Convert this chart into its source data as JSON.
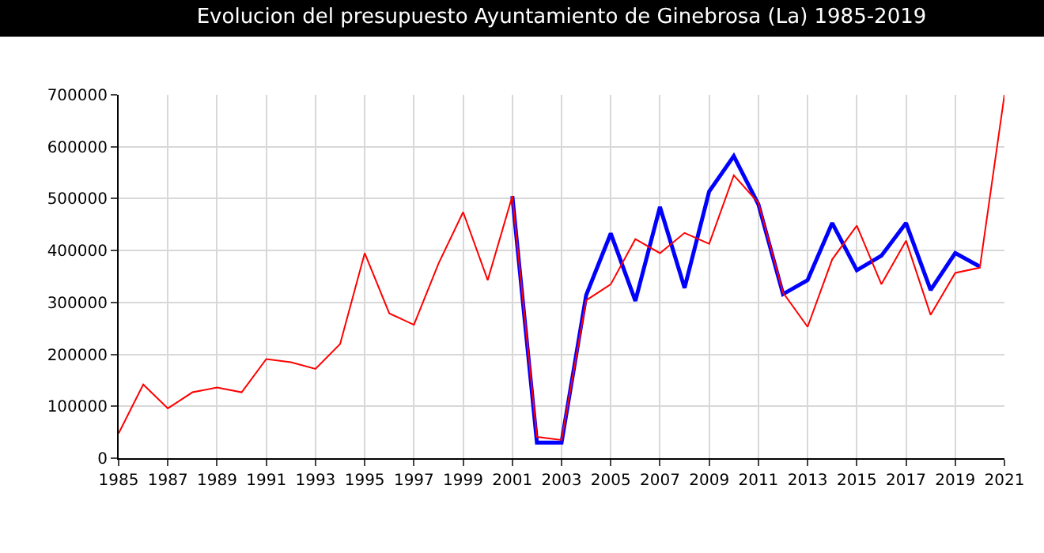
{
  "chart_data": {
    "type": "line",
    "title": "Evolucion del presupuesto Ayuntamiento de Ginebrosa (La) 1985-2019",
    "x": [
      1985,
      1986,
      1987,
      1988,
      1989,
      1990,
      1991,
      1992,
      1993,
      1994,
      1995,
      1996,
      1997,
      1998,
      1999,
      2000,
      2001,
      2002,
      2003,
      2004,
      2005,
      2006,
      2007,
      2008,
      2009,
      2010,
      2011,
      2012,
      2013,
      2014,
      2015,
      2016,
      2017,
      2018,
      2019,
      2020,
      2021
    ],
    "series": [
      {
        "color": "#0000ff",
        "x": [
          2001,
          2002,
          2003,
          2004,
          2005,
          2006,
          2007,
          2008,
          2009,
          2010,
          2011,
          2012,
          2013,
          2014,
          2015,
          2016,
          2017,
          2018,
          2019,
          2020
        ],
        "values": [
          505000,
          30000,
          30000,
          314000,
          433000,
          303000,
          484000,
          328000,
          514000,
          582000,
          489000,
          316000,
          343000,
          453000,
          362000,
          390000,
          453000,
          324000,
          395000,
          369000
        ]
      },
      {
        "color": "#ff0000",
        "values": [
          48000,
          142000,
          96000,
          127000,
          136000,
          127000,
          191000,
          185000,
          172000,
          220000,
          395000,
          279000,
          257000,
          375000,
          474000,
          343000,
          505000,
          41000,
          35000,
          304000,
          335000,
          422000,
          395000,
          434000,
          413000,
          545000,
          492000,
          319000,
          253000,
          383000,
          448000,
          335000,
          419000,
          276000,
          357000,
          367000,
          700000
        ]
      }
    ],
    "xlim": [
      1985,
      2021
    ],
    "xticks": [
      1985,
      1987,
      1989,
      1991,
      1993,
      1995,
      1997,
      1999,
      2001,
      2003,
      2005,
      2007,
      2009,
      2011,
      2013,
      2015,
      2017,
      2019,
      2021
    ],
    "ylim": [
      0,
      700000
    ],
    "yticks": [
      0,
      100000,
      200000,
      300000,
      400000,
      500000,
      600000,
      700000
    ],
    "grid": true,
    "marker": "none",
    "line_style": "solid"
  }
}
